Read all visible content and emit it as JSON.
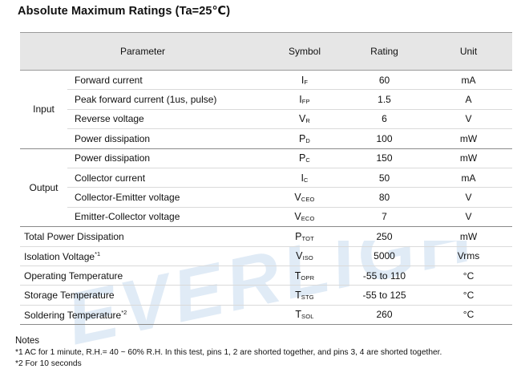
{
  "title": "Absolute Maximum Ratings (Ta=25℃)",
  "watermark": "EVERLIGHT",
  "header": {
    "parameter": "Parameter",
    "symbol": "Symbol",
    "rating": "Rating",
    "unit": "Unit"
  },
  "groups": {
    "input": {
      "label": "Input",
      "rows": [
        {
          "param": "Forward current",
          "sym": "I",
          "sub": "F",
          "rating": "60",
          "unit": "mA"
        },
        {
          "param": "Peak forward current (1us, pulse)",
          "sym": "I",
          "sub": "FP",
          "rating": "1.5",
          "unit": "A"
        },
        {
          "param": "Reverse voltage",
          "sym": "V",
          "sub": "R",
          "rating": "6",
          "unit": "V"
        },
        {
          "param": "Power dissipation",
          "sym": "P",
          "sub": "D",
          "rating": "100",
          "unit": "mW"
        }
      ]
    },
    "output": {
      "label": "Output",
      "rows": [
        {
          "param": "Power dissipation",
          "sym": "P",
          "sub": "C",
          "rating": "150",
          "unit": "mW"
        },
        {
          "param": "Collector current",
          "sym": "I",
          "sub": "C",
          "rating": "50",
          "unit": "mA"
        },
        {
          "param": "Collector-Emitter voltage",
          "sym": "V",
          "sub": "CEO",
          "rating": "80",
          "unit": "V"
        },
        {
          "param": "Emitter-Collector voltage",
          "sym": "V",
          "sub": "ECO",
          "rating": "7",
          "unit": "V"
        }
      ]
    }
  },
  "rows": [
    {
      "param": "Total Power Dissipation",
      "sup": "",
      "sym": "P",
      "sub": "TOT",
      "rating": "250",
      "unit": "mW"
    },
    {
      "param": "Isolation Voltage",
      "sup": "*1",
      "sym": "V",
      "sub": "ISO",
      "rating": "5000",
      "unit": "Vrms"
    },
    {
      "param": "Operating Temperature",
      "sup": "",
      "sym": "T",
      "sub": "OPR",
      "rating": "-55 to 110",
      "unit": "°C"
    },
    {
      "param": "Storage Temperature",
      "sup": "",
      "sym": "T",
      "sub": "STG",
      "rating": "-55 to 125",
      "unit": "°C"
    },
    {
      "param": "Soldering Temperature",
      "sup": "*2",
      "sym": "T",
      "sub": "SOL",
      "rating": "260",
      "unit": "°C"
    }
  ],
  "notes": {
    "heading": "Notes",
    "items": [
      "*1 AC for 1 minute, R.H.= 40 ~ 60% R.H. In this test, pins 1, 2 are shorted together, and pins 3, 4 are shorted together.",
      "*2 For 10 seconds"
    ]
  },
  "colors": {
    "header_bg": "#e6e6e6",
    "watermark": "#dbe7f5"
  }
}
